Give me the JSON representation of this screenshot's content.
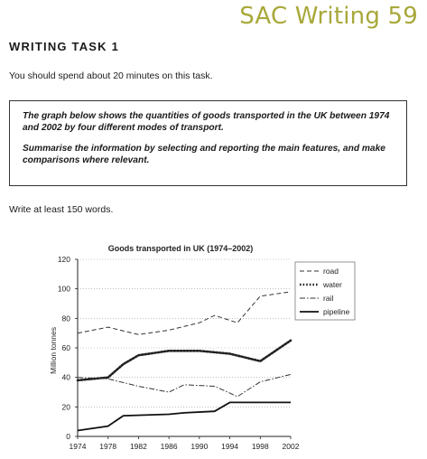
{
  "header": {
    "brand": "SAC Writing 59"
  },
  "task": {
    "heading": "WRITING TASK 1",
    "time_note": "You should spend about 20 minutes on this task.",
    "prompt": "The graph below shows the quantities of goods transported in the UK between 1974 and 2002 by four different modes of transport.",
    "instruction": "Summarise the information by selecting and reporting the main features, and make comparisons where relevant.",
    "word_count": "Write at least 150 words."
  },
  "chart_data": {
    "type": "line",
    "title": "Goods transported in UK (1974–2002)",
    "ylabel": "Million tonnes",
    "xlabel": "",
    "x": [
      1974,
      1978,
      1982,
      1986,
      1990,
      1994,
      1998,
      2002
    ],
    "x_ticks": [
      "1974",
      "1978",
      "1982",
      "1986",
      "1990",
      "1994",
      "1998",
      "2002"
    ],
    "y_ticks": [
      "0",
      "20",
      "40",
      "60",
      "80",
      "100",
      "120"
    ],
    "ylim": [
      0,
      120
    ],
    "grid": "horizontal dotted",
    "legend_position": "top-right",
    "series": [
      {
        "name": "road",
        "style": "dashed",
        "color": "#333333",
        "x": [
          1974,
          1978,
          1982,
          1986,
          1990,
          1992,
          1995,
          1998,
          2002
        ],
        "values": [
          70,
          74,
          69,
          72,
          77,
          82,
          77,
          95,
          98
        ]
      },
      {
        "name": "water",
        "style": "dotted",
        "color": "#222222",
        "x": [
          1974,
          1978,
          1980,
          1982,
          1986,
          1990,
          1994,
          1998,
          2002
        ],
        "values": [
          38,
          40,
          49,
          55,
          58,
          58,
          56,
          51,
          65
        ]
      },
      {
        "name": "rail",
        "style": "dash-dot",
        "color": "#333333",
        "x": [
          1974,
          1978,
          1982,
          1986,
          1988,
          1992,
          1995,
          1998,
          2002
        ],
        "values": [
          40,
          39,
          34,
          30,
          35,
          34,
          27,
          37,
          42
        ]
      },
      {
        "name": "pipeline",
        "style": "solid",
        "color": "#111111",
        "x": [
          1974,
          1978,
          1980,
          1986,
          1988,
          1992,
          1994,
          1998,
          2002
        ],
        "values": [
          4,
          7,
          14,
          15,
          16,
          17,
          23,
          23,
          23
        ]
      }
    ]
  }
}
